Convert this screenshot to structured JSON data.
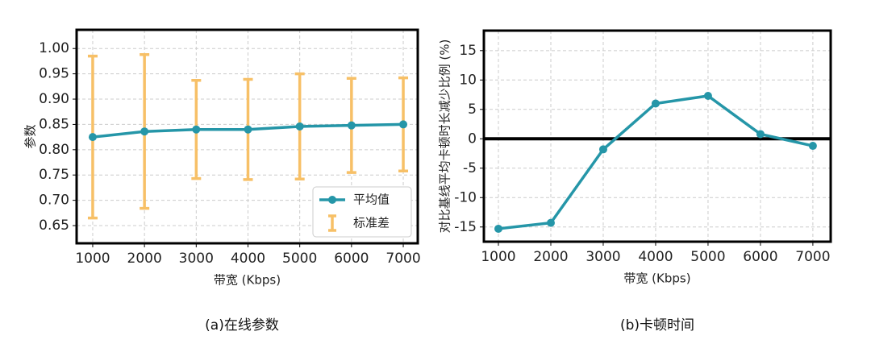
{
  "chart_data": [
    {
      "type": "errorbar-line",
      "caption": "(a)在线参数",
      "xlabel": "带宽 (Kbps)",
      "ylabel": "参数",
      "x": [
        1000,
        2000,
        3000,
        4000,
        5000,
        6000,
        7000
      ],
      "series": [
        {
          "name": "平均值",
          "color": "#2596a8",
          "values": [
            0.825,
            0.836,
            0.84,
            0.84,
            0.846,
            0.848,
            0.85
          ],
          "errors": [
            0.16,
            0.152,
            0.097,
            0.099,
            0.104,
            0.093,
            0.092
          ],
          "error_name": "标准差",
          "error_color": "#f7c067"
        }
      ],
      "xlim": [
        689,
        7280
      ],
      "xticks": [
        1000,
        2000,
        3000,
        4000,
        5000,
        6000,
        7000
      ],
      "ylim": [
        0.615,
        1.037
      ],
      "yticks": [
        0.65,
        {
          "value": 0.7,
          "label": "0.70"
        },
        0.75,
        {
          "value": 0.8,
          "label": "0.80"
        },
        0.85,
        {
          "value": 0.9,
          "label": "0.90"
        },
        0.95,
        {
          "value": 1,
          "label": "1.00"
        }
      ],
      "grid": true,
      "legend": "lower right"
    },
    {
      "type": "line",
      "caption": "(b)卡顿时间",
      "xlabel": "带宽 (Kbps)",
      "ylabel": "对比基线平均卡顿时长减少比例 (%)",
      "x": [
        1000,
        2000,
        3000,
        4000,
        5000,
        6000,
        7000
      ],
      "series": [
        {
          "name": "",
          "color": "#2596a8",
          "values": [
            -15.3,
            -14.3,
            -1.8,
            6.0,
            7.3,
            0.8,
            -1.2
          ]
        }
      ],
      "xlim": [
        723,
        7340
      ],
      "xticks": [
        1000,
        2000,
        3000,
        4000,
        5000,
        6000,
        7000
      ],
      "ylim": [
        -17.5,
        18.4
      ],
      "yticks": [
        -15,
        -10,
        -5,
        0,
        5,
        10,
        15
      ],
      "grid": true,
      "zero_line": true
    }
  ]
}
